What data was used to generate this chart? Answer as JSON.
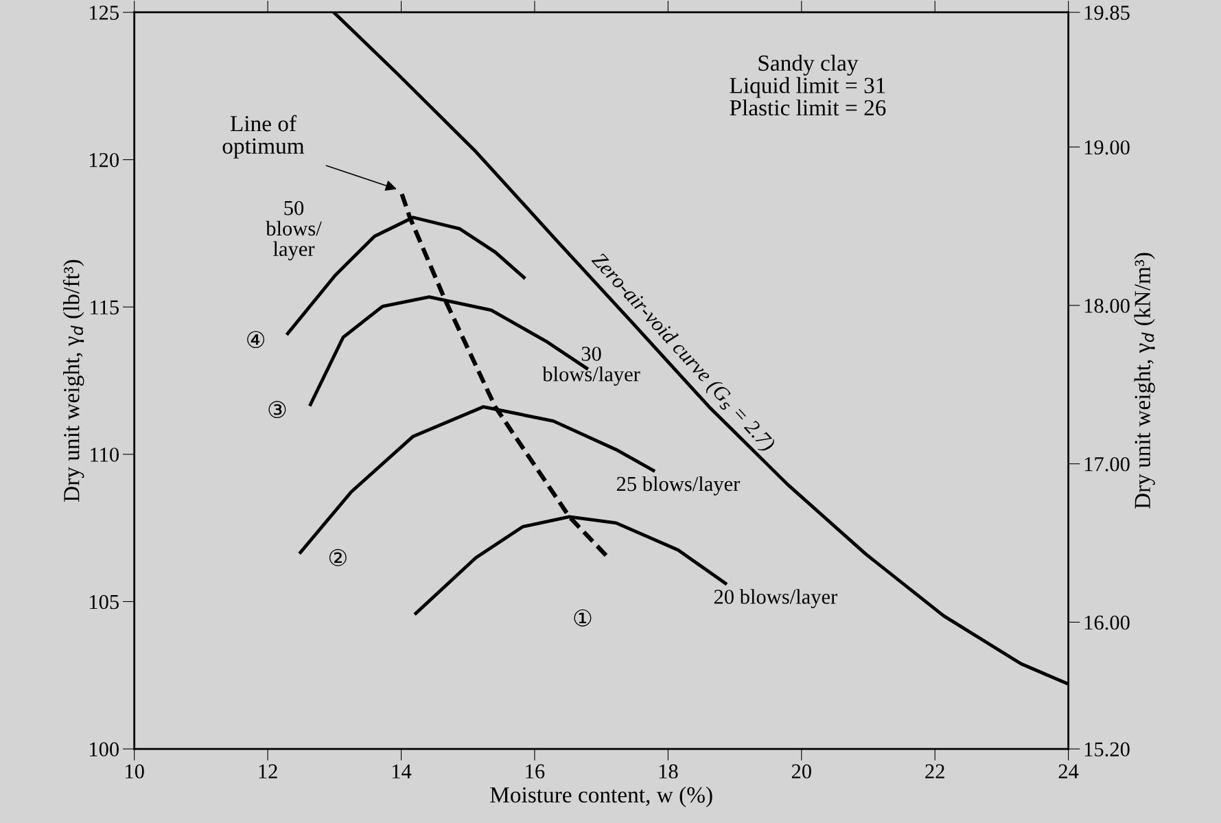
{
  "chart_data": {
    "type": "line",
    "xlabel": "Moisture content, w (%)",
    "ylabel": "Dry unit weight, γ$_{d}$ (lb/ft³)",
    "y2label": "Dry unit weight, γ$_{d}$ (kN/m³)",
    "xlim": [
      10,
      24
    ],
    "xticks": [
      10,
      12,
      14,
      16,
      18,
      20,
      22,
      24
    ],
    "ylim": [
      100,
      125
    ],
    "yticks": [
      100,
      105,
      110,
      115,
      120,
      125
    ],
    "y2lim": [
      15.2,
      19.85
    ],
    "y2ticks": [
      {
        "value": 15.2,
        "label": "15.20"
      },
      {
        "value": 16,
        "label": "16.00"
      },
      {
        "value": 17,
        "label": "17.00"
      },
      {
        "value": 18,
        "label": "18.00"
      },
      {
        "value": 19,
        "label": "19.00"
      },
      19.85
    ],
    "grid": false,
    "legend": false,
    "marker": "none",
    "series": [
      {
        "name": "50\nblows/\nlayer",
        "color": "#000000",
        "line_style": "solid",
        "x": [
          12.3,
          13.01,
          13.6,
          14.18,
          14.88,
          15.41,
          15.84
        ],
        "values": [
          114.1,
          116.07,
          117.4,
          118.04,
          117.65,
          116.86,
          116.0
        ]
      },
      {
        "name": "30\nblows/layer",
        "color": "#000000",
        "line_style": "solid",
        "x": [
          12.64,
          13.13,
          13.72,
          14.42,
          15.35,
          16.17,
          16.78
        ],
        "values": [
          111.69,
          113.97,
          115.02,
          115.34,
          114.89,
          113.84,
          112.92
        ]
      },
      {
        "name": "25 blows/layer",
        "color": "#000000",
        "line_style": "solid",
        "x": [
          12.49,
          13.25,
          14.18,
          15.23,
          16.28,
          17.22,
          17.78
        ],
        "values": [
          106.67,
          108.72,
          110.61,
          111.61,
          111.13,
          110.16,
          109.45
        ]
      },
      {
        "name": "20 blows/layer",
        "color": "#000000",
        "line_style": "solid",
        "x": [
          14.22,
          15.12,
          15.82,
          16.52,
          17.22,
          18.15,
          18.86
        ],
        "values": [
          104.6,
          106.49,
          107.54,
          107.88,
          107.67,
          106.75,
          105.62
        ]
      },
      {
        "color": "#000000",
        "line_style": "dashed",
        "x": [
          14.01,
          14.13,
          14.65,
          15.41,
          16.52,
          17.13
        ],
        "values": [
          118.83,
          118.04,
          115.28,
          111.61,
          107.88,
          106.43
        ]
      },
      {
        "name": "Zero-air-void curve (G$_{s}$ = 2.7)",
        "color": "#000000",
        "line_style": "solid",
        "x": [
          12.99,
          13.95,
          15.12,
          16.28,
          17.45,
          18.62,
          19.79,
          20.96,
          22.13,
          23.29,
          23.97
        ],
        "values": [
          125,
          122.9,
          120.27,
          117.38,
          114.5,
          111.6,
          108.98,
          106.62,
          104.52,
          102.89,
          102.23
        ]
      }
    ],
    "annotations": [
      "Sandy clay\nLiquid limit = 31\nPlastic limit = 26",
      "Line of\noptimum",
      "①",
      "②",
      "③",
      "④"
    ]
  }
}
